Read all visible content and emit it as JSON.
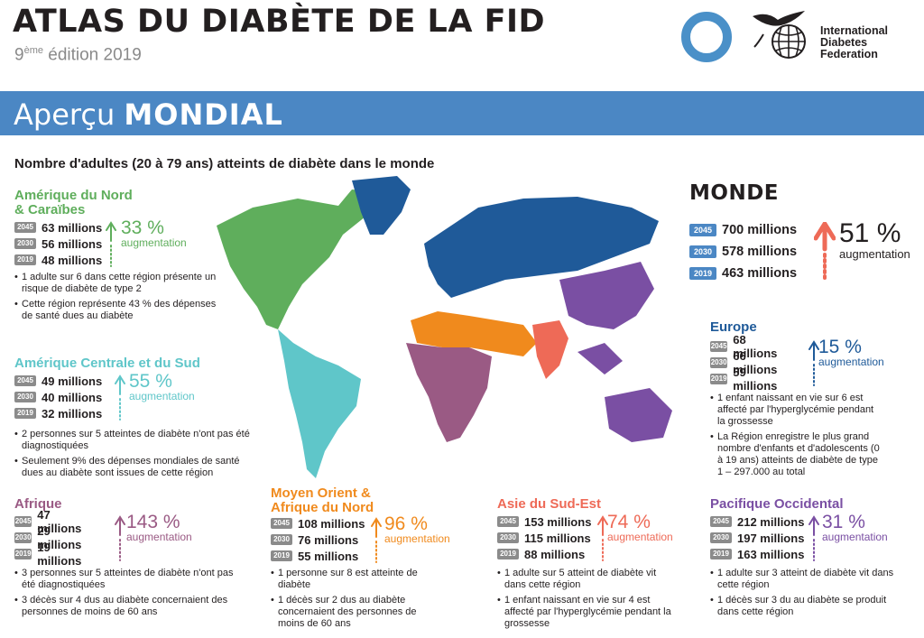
{
  "header": {
    "title": "ATLAS DU DIABÈTE DE LA FID",
    "edition_num": "9",
    "edition_sup": "ème",
    "edition_rest": " édition 2019",
    "org_line1": "International",
    "org_line2": "Diabetes",
    "org_line3": "Federation"
  },
  "banner": {
    "word1": "Aperçu ",
    "word2": "MONDIAL"
  },
  "subtitle": "Nombre d'adultes (20 à 79 ans) atteints de diabète dans le monde",
  "colors": {
    "north_america": "#5fae5c",
    "central_south_america": "#5fc6c9",
    "europe": "#1f5a99",
    "africa": "#9a5a84",
    "mena": "#f08a1d",
    "south_east_asia": "#ee6a57",
    "western_pacific": "#7a4fa3",
    "banner": "#4b87c4"
  },
  "chart_data": {
    "type": "table",
    "columns": [
      "2019",
      "2030",
      "2045"
    ],
    "unit": "millions",
    "regions": [
      {
        "name": "Amérique du Nord & Caraïbes",
        "title_line1": "Amérique du Nord",
        "title_line2": "& Caraïbes",
        "y2045": "63 millions",
        "y2030": "56 millions",
        "y2019": "48 millions",
        "values": [
          48,
          56,
          63
        ],
        "increase": "33 %",
        "increase_pct": 33,
        "notes": [
          "1 adulte sur 6 dans cette région présente un risque de diabète de type 2",
          "Cette région représente 43 % des dépenses de santé dues au diabète"
        ]
      },
      {
        "name": "Amérique Centrale et du Sud",
        "title_line1": "Amérique Centrale et du Sud",
        "title_line2": "",
        "y2045": "49 millions",
        "y2030": "40 millions",
        "y2019": "32 millions",
        "values": [
          32,
          40,
          49
        ],
        "increase": "55 %",
        "increase_pct": 55,
        "notes": [
          "2 personnes sur 5 atteintes de diabète n'ont pas été diagnostiquées",
          "Seulement 9% des dépenses mondiales de santé dues au diabète sont issues de cette région"
        ]
      },
      {
        "name": "Afrique",
        "title_line1": "Afrique",
        "title_line2": "",
        "y2045": "47 millions",
        "y2030": "29 millions",
        "y2019": "19 millions",
        "values": [
          19,
          29,
          47
        ],
        "increase": "143 %",
        "increase_pct": 143,
        "notes": [
          "3 personnes sur 5 atteintes de diabète n'ont pas été diagnostiquées",
          "3 décès sur 4 dus au diabète concernaient des personnes de moins de 60 ans"
        ]
      },
      {
        "name": "Moyen Orient & Afrique du Nord",
        "title_line1": "Moyen Orient &",
        "title_line2": "Afrique du Nord",
        "y2045": "108 millions",
        "y2030": "76 millions",
        "y2019": "55 millions",
        "values": [
          55,
          76,
          108
        ],
        "increase": "96 %",
        "increase_pct": 96,
        "notes": [
          "1 personne sur 8 est atteinte de diabète",
          "1 décès sur 2 dus au diabète concernaient des personnes de moins de 60 ans"
        ]
      },
      {
        "name": "Asie du Sud-Est",
        "title_line1": "Asie du Sud-Est",
        "title_line2": "",
        "y2045": "153 millions",
        "y2030": "115 millions",
        "y2019": "88 millions",
        "values": [
          88,
          115,
          153
        ],
        "increase": "74 %",
        "increase_pct": 74,
        "notes": [
          "1 adulte sur 5 atteint de diabète vit dans cette région",
          "1 enfant naissant en vie sur 4 est affecté par l'hyperglycémie pendant la grossesse"
        ]
      },
      {
        "name": "Pacifique Occidental",
        "title_line1": "Pacifique Occidental",
        "title_line2": "",
        "y2045": "212 millions",
        "y2030": "197 millions",
        "y2019": "163 millions",
        "values": [
          163,
          197,
          212
        ],
        "increase": "31 %",
        "increase_pct": 31,
        "notes": [
          "1 adulte sur 3 atteint de diabète vit dans cette région",
          "1 décès sur 3 du au diabète se produit dans cette région"
        ]
      },
      {
        "name": "Europe",
        "title_line1": "Europe",
        "title_line2": "",
        "y2045": "68 millions",
        "y2030": "66 millions",
        "y2019": "59 millions",
        "values": [
          59,
          66,
          68
        ],
        "increase": "15 %",
        "increase_pct": 15,
        "notes": [
          "1 enfant naissant en vie sur 6 est affecté par l'hyperglycémie pendant la grossesse",
          "La Région enregistre le plus grand nombre d'enfants et d'adolescents (0 à 19 ans) atteints de diabète de type 1 – 297.000 au total"
        ]
      }
    ],
    "world": {
      "title": "MONDE",
      "y2045": "700 millions",
      "y2030": "578 millions",
      "y2019": "463 millions",
      "values": [
        463,
        578,
        700
      ],
      "increase": "51 %",
      "increase_pct": 51
    },
    "aug_label": "augmentation"
  }
}
